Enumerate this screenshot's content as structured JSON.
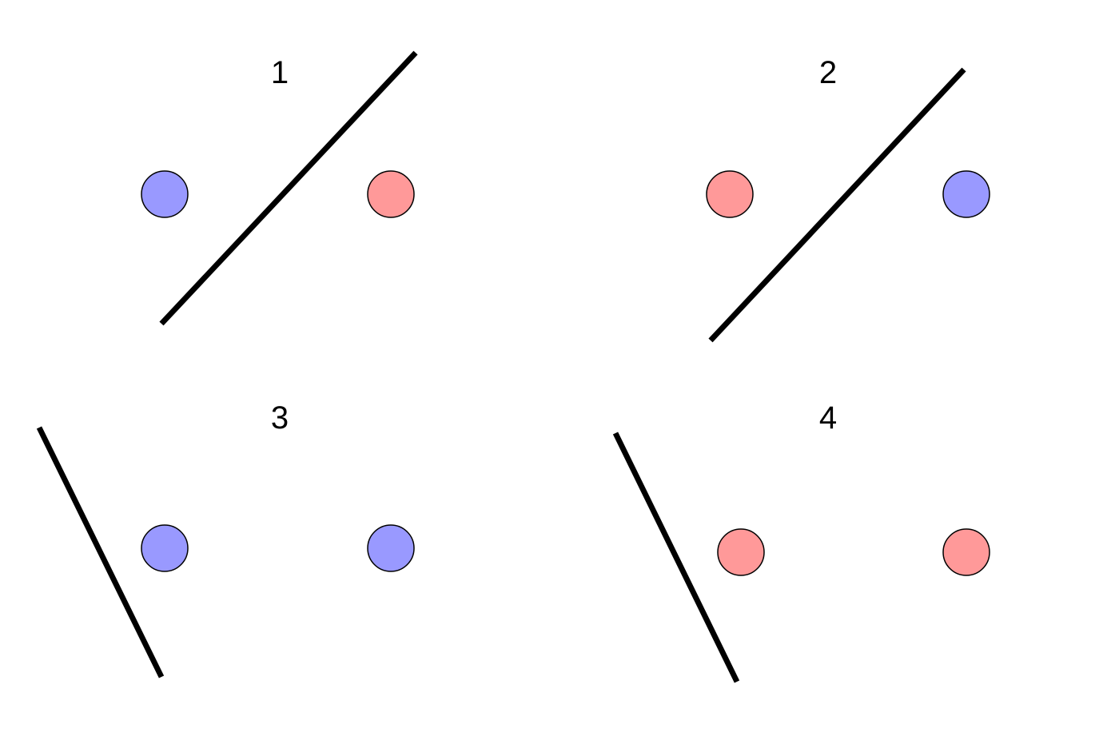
{
  "colors": {
    "blue": "#9999ff",
    "red": "#ff9999",
    "line": "#000000"
  },
  "panels": [
    {
      "label": "1",
      "points": [
        "blue",
        "red"
      ]
    },
    {
      "label": "2",
      "points": [
        "red",
        "blue"
      ]
    },
    {
      "label": "3",
      "points": [
        "blue",
        "blue"
      ]
    },
    {
      "label": "4",
      "points": [
        "red",
        "red"
      ]
    }
  ]
}
